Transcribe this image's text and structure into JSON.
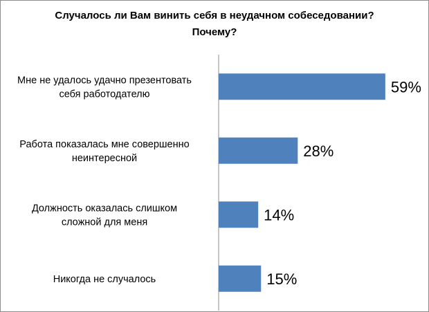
{
  "chart_data": {
    "type": "bar",
    "orientation": "horizontal",
    "title_lines": [
      "Случалось ли Вам винить себя в неудачном собеседовании?",
      "Почему?"
    ],
    "categories": [
      [
        "Мне не удалось удачно презентовать",
        "себя работодателю"
      ],
      [
        "Работа показалась мне совершенно",
        "неинтересной"
      ],
      [
        "Должность оказалась слишком",
        "сложной для меня"
      ],
      [
        "Никогда не случалось"
      ]
    ],
    "values": [
      59,
      28,
      14,
      15
    ],
    "value_labels": [
      "59%",
      "28%",
      "14%",
      "15%"
    ],
    "xlim": [
      0,
      73
    ],
    "bar_color": "#4f81bd",
    "grid": false,
    "legend": "none"
  }
}
